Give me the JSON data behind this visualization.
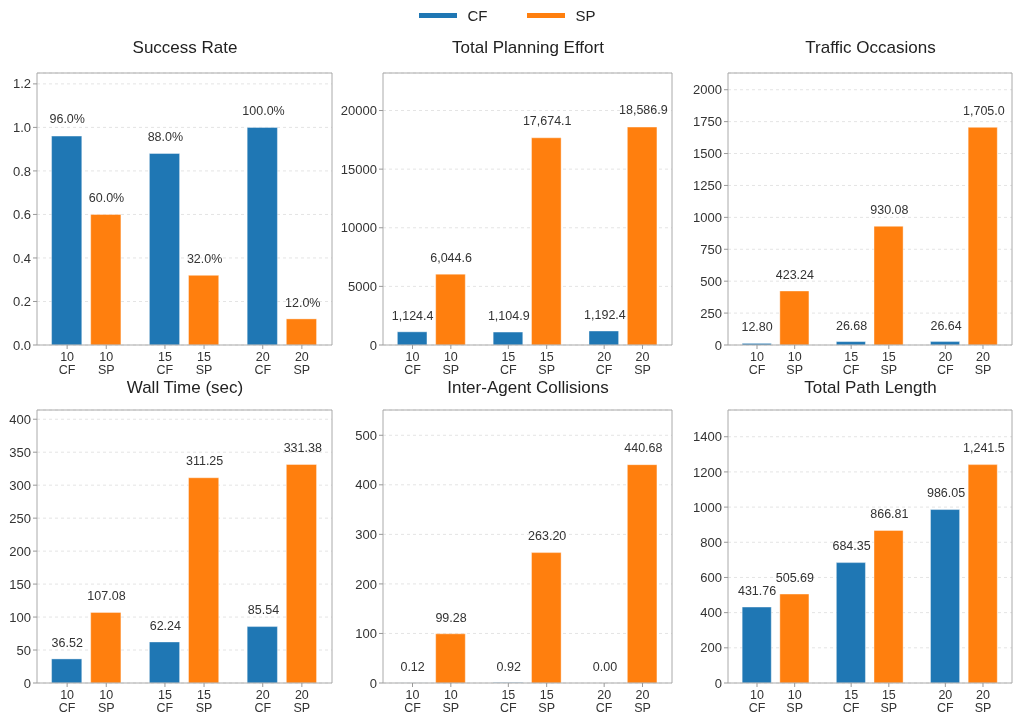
{
  "chart_data": [
    {
      "type": "bar",
      "title": "Success Rate",
      "categories": [
        "10\nCF",
        "10\nSP",
        "15\nCF",
        "15\nSP",
        "20\nCF",
        "20\nSP"
      ],
      "series": [
        {
          "name": "CF",
          "color": "#1f77b4",
          "values": [
            0.96,
            null,
            0.88,
            null,
            1.0,
            null
          ],
          "value_labels": [
            "96.0%",
            null,
            "88.0%",
            null,
            "100.0%",
            null
          ]
        },
        {
          "name": "SP",
          "color": "#ff7f0e",
          "values": [
            null,
            0.6,
            null,
            0.32,
            null,
            0.12
          ],
          "value_labels": [
            null,
            "60.0%",
            null,
            "32.0%",
            null,
            "12.0%"
          ]
        }
      ],
      "ylim": [
        0,
        1.25
      ],
      "yticks": [
        {
          "value": 0,
          "label": "0.0"
        },
        {
          "value": 0.2,
          "label": "0.2"
        },
        {
          "value": 0.4,
          "label": "0.4"
        },
        {
          "value": 0.6,
          "label": "0.6"
        },
        {
          "value": 0.8,
          "label": "0.8"
        },
        {
          "value": 1,
          "label": "1.0"
        },
        {
          "value": 1.2,
          "label": "1.2"
        }
      ],
      "grid": "y",
      "legend": "top"
    },
    {
      "type": "bar",
      "title": "Total Planning Effort",
      "categories": [
        "10\nCF",
        "10\nSP",
        "15\nCF",
        "15\nSP",
        "20\nCF",
        "20\nSP"
      ],
      "series": [
        {
          "color": "#1f77b4",
          "values": [
            1124.4,
            null,
            1104.9,
            null,
            1192.4,
            null
          ],
          "value_labels": [
            "1,124.4",
            null,
            "1,104.9",
            null,
            "1,192.4",
            null
          ]
        },
        {
          "color": "#ff7f0e",
          "values": [
            null,
            6044.6,
            null,
            17674.1,
            null,
            18586.9
          ],
          "value_labels": [
            null,
            "6,044.6",
            null,
            "17,674.1",
            null,
            "18,586.9"
          ]
        }
      ],
      "ylim": [
        0,
        23200
      ],
      "yticks": [
        0,
        5000,
        10000,
        15000,
        20000
      ],
      "grid": "y"
    },
    {
      "type": "bar",
      "title": "Traffic Occasions",
      "categories": [
        "10\nCF",
        "10\nSP",
        "15\nCF",
        "15\nSP",
        "20\nCF",
        "20\nSP"
      ],
      "series": [
        {
          "color": "#1f77b4",
          "values": [
            12.8,
            null,
            26.68,
            null,
            26.64,
            null
          ],
          "value_labels": [
            "12.80",
            null,
            "26.68",
            null,
            "26.64",
            null
          ]
        },
        {
          "color": "#ff7f0e",
          "values": [
            null,
            423.24,
            null,
            930.08,
            null,
            1705.0
          ],
          "value_labels": [
            null,
            "423.24",
            null,
            "930.08",
            null,
            "1,705.0"
          ]
        }
      ],
      "ylim": [
        0,
        2131
      ],
      "yticks": [
        0,
        250,
        500,
        750,
        1000,
        1250,
        1500,
        1750,
        2000
      ],
      "grid": "y"
    },
    {
      "type": "bar",
      "title": "Wall Time (sec)",
      "categories": [
        "10\nCF",
        "10\nSP",
        "15\nCF",
        "15\nSP",
        "20\nCF",
        "20\nSP"
      ],
      "series": [
        {
          "color": "#1f77b4",
          "values": [
            36.52,
            null,
            62.24,
            null,
            85.54,
            null
          ],
          "value_labels": [
            "36.52",
            null,
            "62.24",
            null,
            "85.54",
            null
          ]
        },
        {
          "color": "#ff7f0e",
          "values": [
            null,
            107.08,
            null,
            311.25,
            null,
            331.38
          ],
          "value_labels": [
            null,
            "107.08",
            null,
            "311.25",
            null,
            "331.38"
          ]
        }
      ],
      "ylim": [
        0,
        414
      ],
      "yticks": [
        0,
        50,
        100,
        150,
        200,
        250,
        300,
        350,
        400
      ],
      "grid": "y"
    },
    {
      "type": "bar",
      "title": "Inter-Agent Collisions",
      "categories": [
        "10\nCF",
        "10\nSP",
        "15\nCF",
        "15\nSP",
        "20\nCF",
        "20\nSP"
      ],
      "series": [
        {
          "color": "#1f77b4",
          "values": [
            0.12,
            null,
            0.92,
            null,
            0.0,
            null
          ],
          "value_labels": [
            "0.12",
            null,
            "0.92",
            null,
            "0.00",
            null
          ]
        },
        {
          "color": "#ff7f0e",
          "values": [
            null,
            99.28,
            null,
            263.2,
            null,
            440.68
          ],
          "value_labels": [
            null,
            "99.28",
            null,
            "263.20",
            null,
            "440.68"
          ]
        }
      ],
      "ylim": [
        0,
        551
      ],
      "yticks": [
        0,
        100,
        200,
        300,
        400,
        500
      ],
      "grid": "y"
    },
    {
      "type": "bar",
      "title": "Total Path Length",
      "categories": [
        "10\nCF",
        "10\nSP",
        "15\nCF",
        "15\nSP",
        "20\nCF",
        "20\nSP"
      ],
      "series": [
        {
          "color": "#1f77b4",
          "values": [
            431.76,
            null,
            684.35,
            null,
            986.05,
            null
          ],
          "value_labels": [
            "431.76",
            null,
            "684.35",
            null,
            "986.05",
            null
          ]
        },
        {
          "color": "#ff7f0e",
          "values": [
            null,
            505.69,
            null,
            866.81,
            null,
            1241.5
          ],
          "value_labels": [
            null,
            "505.69",
            null,
            "866.81",
            null,
            "1,241.5"
          ]
        }
      ],
      "ylim": [
        0,
        1552
      ],
      "yticks": [
        0,
        200,
        400,
        600,
        800,
        1000,
        1200,
        1400
      ],
      "grid": "y"
    }
  ]
}
